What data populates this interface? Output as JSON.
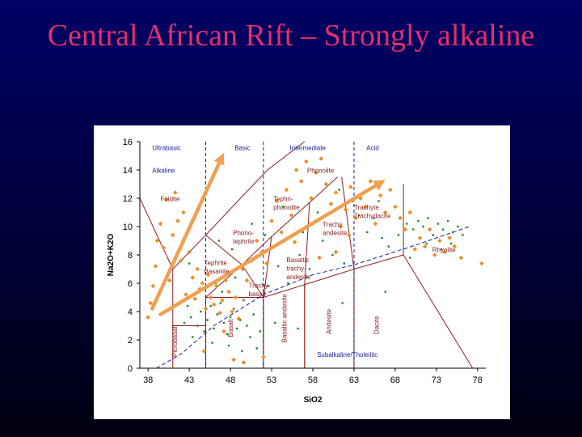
{
  "slide": {
    "title": "Central African Rift – Strongly alkaline"
  },
  "colors": {
    "title": "#e0306a",
    "background": "#000040",
    "field_lines": "#8c2020",
    "category_lines": "#1a1a99",
    "orange_points": "#f08a24",
    "green_points": "#1a8c1a",
    "arrows": "#f0a050"
  },
  "chart_data": {
    "type": "scatter",
    "title": "",
    "xlabel": "SiO2",
    "ylabel": "Na2O+K2O",
    "xlim": [
      37,
      79
    ],
    "ylim": [
      0,
      16
    ],
    "xticks": [
      38,
      43,
      48,
      53,
      58,
      63,
      68,
      73,
      78
    ],
    "yticks": [
      0,
      2,
      4,
      6,
      8,
      10,
      12,
      14,
      16
    ],
    "grid": false,
    "categories": [
      {
        "label": "Ultrabasic",
        "x": 38.5,
        "y": 15.4
      },
      {
        "label": "Basic",
        "x": 48.5,
        "y": 15.4
      },
      {
        "label": "Intermediate",
        "x": 55.2,
        "y": 15.4
      },
      {
        "label": "Acid",
        "x": 64.5,
        "y": 15.4
      },
      {
        "label": "Alkaline",
        "x": 38.5,
        "y": 13.8
      },
      {
        "label": "Subalkaline/Tholeiitic",
        "x": 58.5,
        "y": 0.8
      }
    ],
    "field_labels": [
      {
        "label": "Phonolite",
        "x": 57.3,
        "y": 13.8
      },
      {
        "label": "Foidite",
        "x": 39.5,
        "y": 11.8
      },
      {
        "label": "Tephri-",
        "x": 53.2,
        "y": 11.8
      },
      {
        "label": "phonolite",
        "x": 53.2,
        "y": 11.2
      },
      {
        "label": "Trachyte",
        "x": 63.0,
        "y": 11.2
      },
      {
        "label": "Trachydacite",
        "x": 63.0,
        "y": 10.6
      },
      {
        "label": "Phono-",
        "x": 48.3,
        "y": 9.4
      },
      {
        "label": "tephrite",
        "x": 48.3,
        "y": 8.8
      },
      {
        "label": "Trachy",
        "x": 59.2,
        "y": 10.0
      },
      {
        "label": "andesite",
        "x": 59.2,
        "y": 9.4
      },
      {
        "label": "Tephrite",
        "x": 44.8,
        "y": 7.3
      },
      {
        "label": "Basanite",
        "x": 44.8,
        "y": 6.7
      },
      {
        "label": "Basaltic",
        "x": 54.8,
        "y": 7.5
      },
      {
        "label": "trachy-",
        "x": 54.8,
        "y": 6.9
      },
      {
        "label": "andesite",
        "x": 54.8,
        "y": 6.3
      },
      {
        "label": "Trachy-",
        "x": 50.2,
        "y": 5.7
      },
      {
        "label": "basalt",
        "x": 50.2,
        "y": 5.1
      },
      {
        "label": "Rhyolite",
        "x": 72.5,
        "y": 8.2
      }
    ],
    "vertical_field_labels": [
      {
        "label": "Picrobasalt",
        "x": 41.5,
        "y": 0.8
      },
      {
        "label": "Basalt",
        "x": 48.3,
        "y": 2.2
      },
      {
        "label": "Basaltic andesite",
        "x": 54.8,
        "y": 1.8
      },
      {
        "label": "Andesite",
        "x": 60.2,
        "y": 2.4
      },
      {
        "label": "Dacite",
        "x": 66.0,
        "y": 2.4
      }
    ],
    "field_boundaries": [
      [
        [
          41,
          0
        ],
        [
          41,
          3
        ],
        [
          45,
          3
        ],
        [
          45,
          0
        ]
      ],
      [
        [
          45,
          0
        ],
        [
          45,
          5
        ],
        [
          52,
          5
        ],
        [
          52,
          0
        ]
      ],
      [
        [
          52,
          0
        ],
        [
          52,
          5
        ],
        [
          57,
          5.9
        ],
        [
          57,
          0
        ]
      ],
      [
        [
          57,
          0
        ],
        [
          57,
          5.9
        ],
        [
          63,
          7
        ],
        [
          63,
          0
        ]
      ],
      [
        [
          63,
          0
        ],
        [
          63,
          7
        ],
        [
          69,
          8
        ],
        [
          77.4,
          0
        ]
      ],
      [
        [
          41,
          3
        ],
        [
          41,
          7
        ],
        [
          45,
          9.4
        ],
        [
          49.4,
          7.3
        ],
        [
          52,
          5
        ]
      ],
      [
        [
          45,
          5
        ],
        [
          49.4,
          7.3
        ],
        [
          53,
          9.3
        ],
        [
          57.6,
          11.7
        ],
        [
          61,
          13.5
        ]
      ],
      [
        [
          52,
          5
        ],
        [
          53,
          9.3
        ]
      ],
      [
        [
          57,
          5.9
        ],
        [
          57.6,
          11.7
        ]
      ],
      [
        [
          63,
          7
        ],
        [
          61.5,
          13.5
        ]
      ],
      [
        [
          69,
          8
        ],
        [
          69,
          13
        ]
      ],
      [
        [
          45,
          9.4
        ],
        [
          48.4,
          11.5
        ],
        [
          52.5,
          14
        ],
        [
          57,
          16.2
        ]
      ],
      [
        [
          41,
          7
        ],
        [
          37,
          12
        ]
      ]
    ],
    "category_boundaries": [
      {
        "x": 45
      },
      {
        "x": 52
      },
      {
        "x": 63
      }
    ],
    "alkaline_divide": [
      [
        39,
        0
      ],
      [
        42,
        1
      ],
      [
        46,
        3
      ],
      [
        52,
        5.2
      ],
      [
        58,
        6.6
      ],
      [
        63,
        7.3
      ],
      [
        70,
        8.6
      ],
      [
        77,
        10
      ]
    ],
    "arrows": [
      {
        "from": [
          38.5,
          4.2
        ],
        "to": [
          47.2,
          15.2
        ]
      },
      {
        "from": [
          39.5,
          3.8
        ],
        "to": [
          66.8,
          13.3
        ]
      }
    ],
    "series": [
      {
        "name": "",
        "color": "#f08a24",
        "points": [
          [
            38.0,
            3.6
          ],
          [
            38.3,
            4.6
          ],
          [
            38.6,
            5.8
          ],
          [
            38.9,
            7.2
          ],
          [
            39.1,
            9.0
          ],
          [
            39.5,
            10.2
          ],
          [
            39.9,
            8.5
          ],
          [
            40.2,
            11.9
          ],
          [
            40.6,
            6.2
          ],
          [
            41.0,
            9.4
          ],
          [
            41.3,
            12.4
          ],
          [
            41.6,
            10.4
          ],
          [
            42.0,
            7.6
          ],
          [
            42.3,
            11.0
          ],
          [
            42.6,
            5.2
          ],
          [
            43.0,
            8.2
          ],
          [
            43.4,
            6.4
          ],
          [
            43.7,
            4.9
          ],
          [
            44.0,
            7.0
          ],
          [
            44.3,
            5.6
          ],
          [
            44.6,
            6.0
          ],
          [
            45.0,
            4.2
          ],
          [
            45.3,
            6.6
          ],
          [
            45.6,
            5.0
          ],
          [
            46.0,
            4.5
          ],
          [
            46.3,
            5.8
          ],
          [
            46.7,
            3.9
          ],
          [
            47.0,
            4.8
          ],
          [
            47.4,
            6.2
          ],
          [
            47.8,
            5.4
          ],
          [
            48.2,
            4.0
          ],
          [
            48.6,
            5.0
          ],
          [
            49.0,
            3.5
          ],
          [
            49.5,
            7.0
          ],
          [
            50.0,
            6.2
          ],
          [
            50.6,
            7.6
          ],
          [
            51.2,
            9.0
          ],
          [
            51.8,
            8.2
          ],
          [
            52.4,
            7.4
          ],
          [
            53.0,
            10.4
          ],
          [
            53.6,
            11.8
          ],
          [
            54.2,
            9.6
          ],
          [
            54.8,
            12.6
          ],
          [
            55.4,
            10.8
          ],
          [
            56.0,
            14.0
          ],
          [
            56.6,
            13.2
          ],
          [
            57.2,
            14.6
          ],
          [
            57.8,
            12.0
          ],
          [
            58.4,
            13.8
          ],
          [
            59.0,
            14.8
          ],
          [
            59.6,
            13.0
          ],
          [
            60.2,
            11.6
          ],
          [
            60.8,
            12.4
          ],
          [
            61.4,
            10.0
          ],
          [
            62.0,
            11.2
          ],
          [
            62.6,
            12.8
          ],
          [
            63.2,
            10.6
          ],
          [
            63.8,
            12.0
          ],
          [
            64.4,
            11.4
          ],
          [
            65.0,
            13.2
          ],
          [
            65.6,
            10.2
          ],
          [
            66.2,
            12.2
          ],
          [
            66.8,
            11.0
          ],
          [
            67.4,
            12.6
          ],
          [
            68.0,
            11.4
          ],
          [
            68.6,
            10.6
          ],
          [
            69.2,
            9.8
          ],
          [
            69.8,
            11.0
          ],
          [
            70.4,
            8.4
          ],
          [
            71.0,
            9.2
          ],
          [
            71.6,
            8.6
          ],
          [
            72.2,
            9.8
          ],
          [
            72.8,
            8.0
          ],
          [
            73.4,
            9.0
          ],
          [
            74.0,
            8.2
          ],
          [
            74.6,
            9.2
          ],
          [
            75.2,
            8.6
          ],
          [
            76.0,
            7.8
          ],
          [
            78.5,
            7.4
          ],
          [
            48.4,
            0.6
          ],
          [
            49.6,
            0.4
          ],
          [
            44.8,
            1.2
          ],
          [
            52.0,
            0.8
          ],
          [
            47.2,
            2.6
          ],
          [
            55.8,
            8.9
          ],
          [
            58.8,
            7.8
          ],
          [
            60.8,
            8.2
          ],
          [
            62.4,
            9.4
          ]
        ]
      },
      {
        "name": "",
        "color": "#1a8c1a",
        "points": [
          [
            42.4,
            3.2
          ],
          [
            42.8,
            4.4
          ],
          [
            43.2,
            3.6
          ],
          [
            43.6,
            5.2
          ],
          [
            44.0,
            3.0
          ],
          [
            44.4,
            4.0
          ],
          [
            44.8,
            2.6
          ],
          [
            45.2,
            3.4
          ],
          [
            45.6,
            4.4
          ],
          [
            46.0,
            2.8
          ],
          [
            46.4,
            3.8
          ],
          [
            46.8,
            4.6
          ],
          [
            47.2,
            3.2
          ],
          [
            47.6,
            2.4
          ],
          [
            48.0,
            3.6
          ],
          [
            48.4,
            4.2
          ],
          [
            48.8,
            2.8
          ],
          [
            49.2,
            3.4
          ],
          [
            49.6,
            4.8
          ],
          [
            50.0,
            3.0
          ],
          [
            50.4,
            2.2
          ],
          [
            50.8,
            3.8
          ],
          [
            51.2,
            1.4
          ],
          [
            51.6,
            2.6
          ],
          [
            43.4,
            2.2
          ],
          [
            45.8,
            1.8
          ],
          [
            47.8,
            1.6
          ],
          [
            49.4,
            1.2
          ],
          [
            44.6,
            5.6
          ],
          [
            46.2,
            6.0
          ],
          [
            47.0,
            5.4
          ],
          [
            48.6,
            6.4
          ],
          [
            52.6,
            5.8
          ],
          [
            53.8,
            7.2
          ],
          [
            55.0,
            6.0
          ],
          [
            56.4,
            8.0
          ],
          [
            57.6,
            7.0
          ],
          [
            59.2,
            9.0
          ],
          [
            60.4,
            8.0
          ],
          [
            61.8,
            7.4
          ],
          [
            62.8,
            11.8
          ],
          [
            63.6,
            10.8
          ],
          [
            64.6,
            9.6
          ],
          [
            65.4,
            10.6
          ],
          [
            66.4,
            9.2
          ],
          [
            67.2,
            8.6
          ],
          [
            68.4,
            9.4
          ],
          [
            69.4,
            10.2
          ],
          [
            70.2,
            9.8
          ],
          [
            70.8,
            10.4
          ],
          [
            71.4,
            10.0
          ],
          [
            72.0,
            10.6
          ],
          [
            72.6,
            9.4
          ],
          [
            73.2,
            10.2
          ],
          [
            73.8,
            9.8
          ],
          [
            74.4,
            10.4
          ],
          [
            75.0,
            9.6
          ],
          [
            75.6,
            10.0
          ],
          [
            76.2,
            9.4
          ],
          [
            71.8,
            8.8
          ],
          [
            73.6,
            8.4
          ],
          [
            74.8,
            8.8
          ],
          [
            69.8,
            7.8
          ],
          [
            66.0,
            11.8
          ],
          [
            64.2,
            12.4
          ],
          [
            61.2,
            12.6
          ],
          [
            58.6,
            11.0
          ],
          [
            56.8,
            9.6
          ],
          [
            54.4,
            11.4
          ],
          [
            52.2,
            9.4
          ],
          [
            50.6,
            10.2
          ],
          [
            48.2,
            8.4
          ],
          [
            46.6,
            9.0
          ],
          [
            44.2,
            11.2
          ],
          [
            43.0,
            7.4
          ],
          [
            53.4,
            3.2
          ],
          [
            56.2,
            2.8
          ],
          [
            61.6,
            4.6
          ],
          [
            66.8,
            5.4
          ]
        ]
      }
    ]
  }
}
